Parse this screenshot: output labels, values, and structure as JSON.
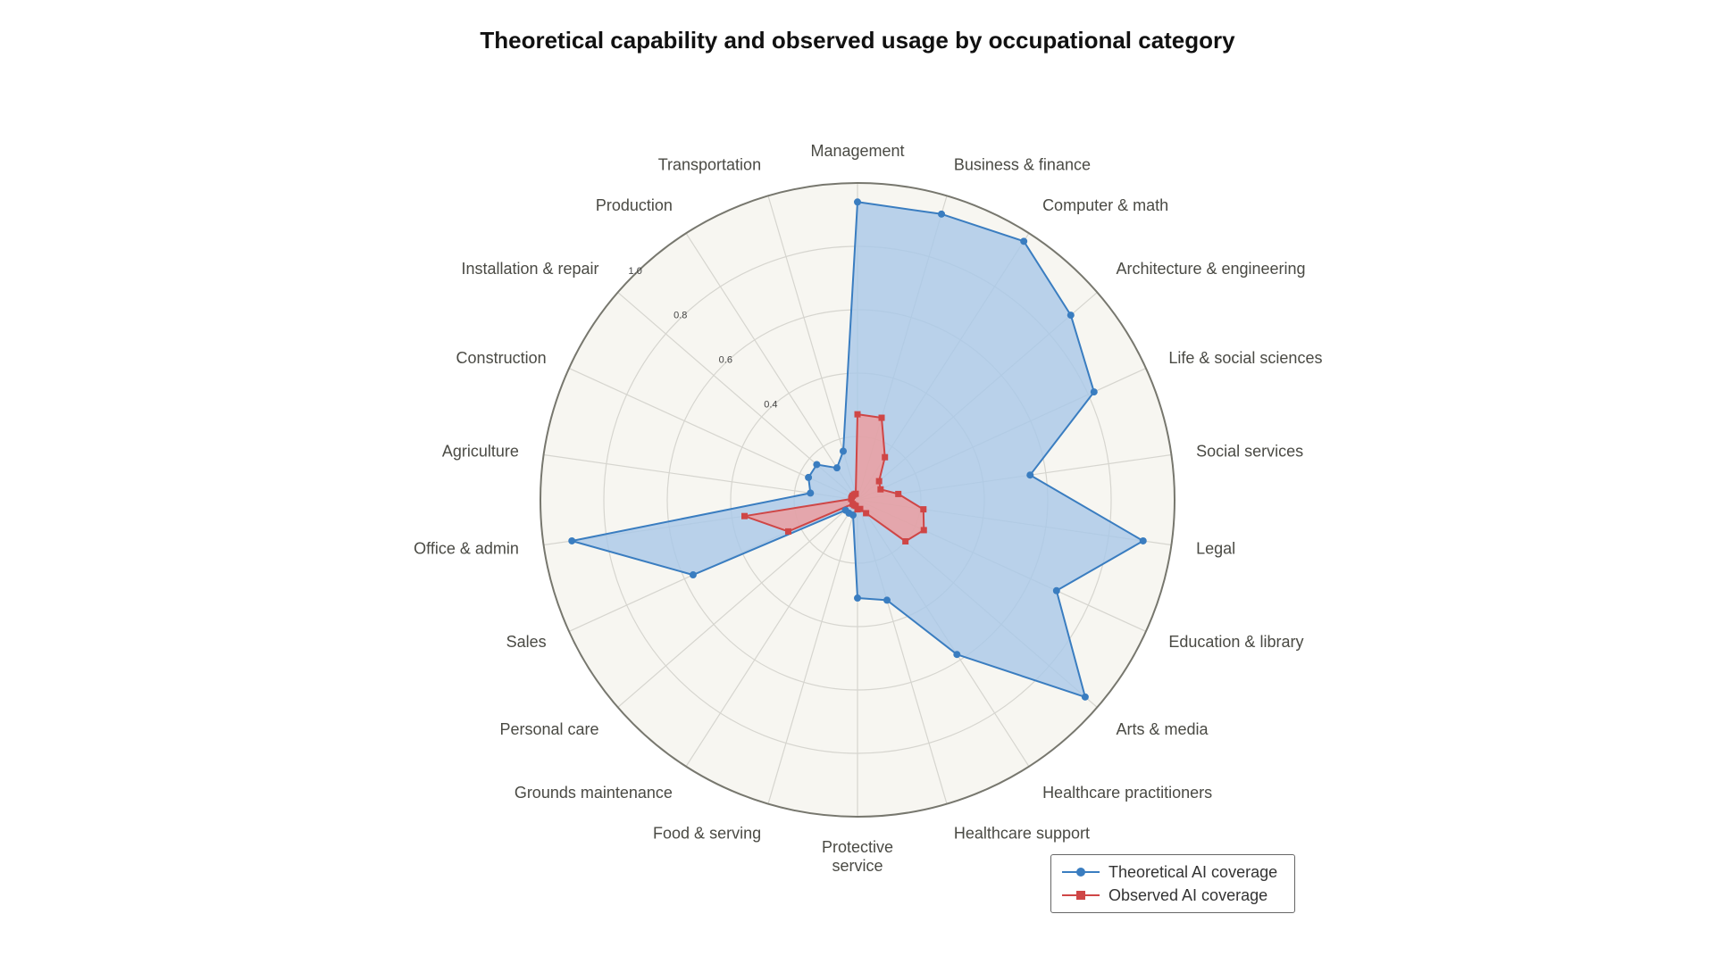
{
  "title": "Theoretical capability and observed usage by occupational category",
  "colors": {
    "theoretical": "#3a7dc0",
    "theoretical_fill": "#a9c8e8",
    "observed": "#cf4646",
    "observed_fill": "#ef9a9a",
    "plot_bg": "#f7f6f1",
    "grid": "#d6d5cf",
    "outer": "#77776e"
  },
  "chart_data": {
    "type": "radar",
    "title": "Theoretical capability and observed usage by occupational category",
    "categories": [
      "Management",
      "Business & finance",
      "Computer & math",
      "Architecture & engineering",
      "Life & social sciences",
      "Social services",
      "Legal",
      "Education & library",
      "Arts & media",
      "Healthcare practitioners",
      "Healthcare support",
      "Protective service",
      "Food & serving",
      "Grounds maintenance",
      "Personal care",
      "Sales",
      "Office & admin",
      "Agriculture",
      "Construction",
      "Installation & repair",
      "Production",
      "Transportation"
    ],
    "radial_ticks": [
      0.4,
      0.6,
      0.8,
      1.0
    ],
    "rlim": [
      0,
      1
    ],
    "grid": true,
    "legend_position": "bottom-right",
    "series": [
      {
        "name": "Theoretical AI coverage",
        "marker": "circle",
        "values": [
          0.94,
          0.94,
          0.97,
          0.89,
          0.82,
          0.55,
          0.91,
          0.69,
          0.95,
          0.58,
          0.33,
          0.31,
          0.05,
          0.05,
          0.05,
          0.57,
          0.91,
          0.15,
          0.17,
          0.17,
          0.12,
          0.16
        ]
      },
      {
        "name": "Observed AI coverage",
        "marker": "square",
        "values": [
          0.27,
          0.27,
          0.16,
          0.09,
          0.08,
          0.13,
          0.21,
          0.23,
          0.2,
          0.05,
          0.03,
          0.03,
          0.02,
          0.02,
          0.02,
          0.24,
          0.36,
          0.02,
          0.02,
          0.02,
          0.02,
          0.02
        ]
      }
    ]
  }
}
